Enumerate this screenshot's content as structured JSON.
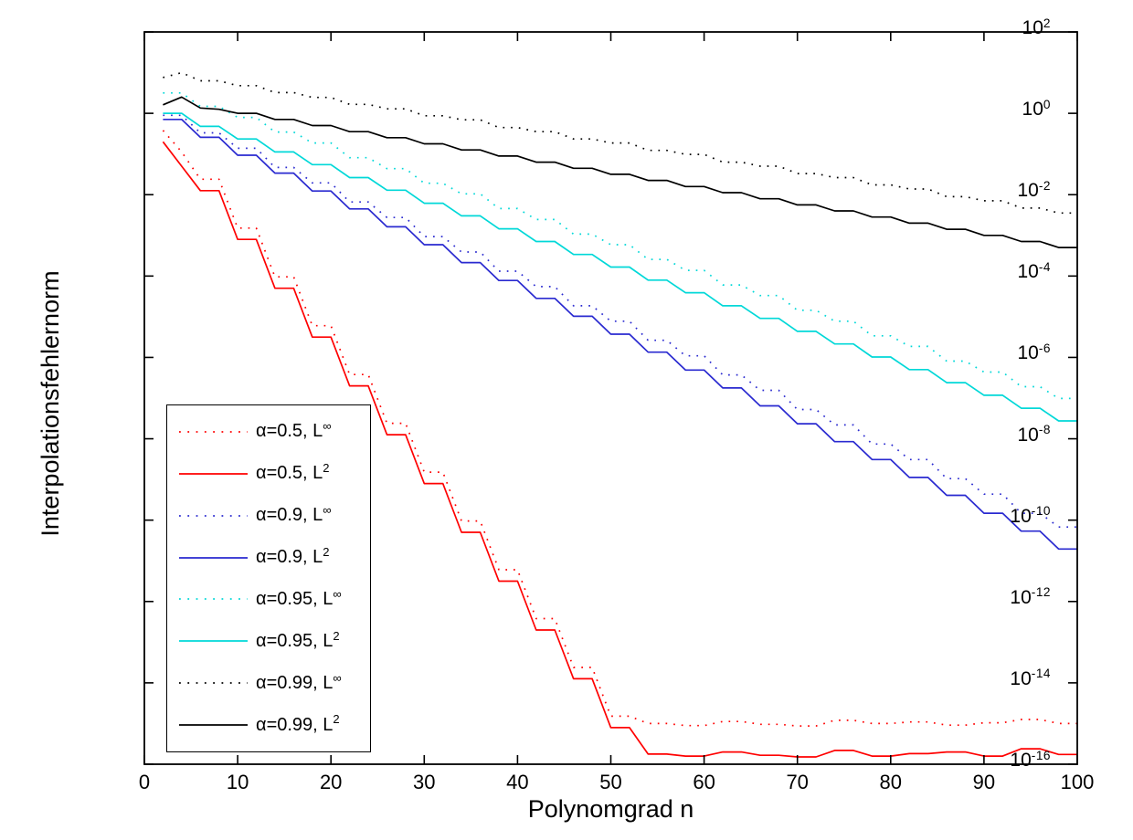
{
  "figure": {
    "background": "#ffffff",
    "axis_color": "#000000"
  },
  "axes": {
    "x": {
      "label": "Polynomgrad n",
      "ticks": [
        "0",
        "10",
        "20",
        "30",
        "40",
        "50",
        "60",
        "70",
        "80",
        "90",
        "100"
      ],
      "min": 0,
      "max": 100
    },
    "y": {
      "label": "Interpolationsfehlernorm",
      "base": "10",
      "tick_exponents": [
        "2",
        "0",
        "-2",
        "-4",
        "-6",
        "-8",
        "-10",
        "-12",
        "-14",
        "-16"
      ],
      "log10_min": -16,
      "log10_max": 2
    }
  },
  "chart_data": {
    "type": "line",
    "title": "",
    "xlabel": "Polynomgrad n",
    "ylabel": "Interpolationsfehlernorm",
    "xlim": [
      0,
      100
    ],
    "ylog10_lim": [
      -16,
      2
    ],
    "x_scale": "linear",
    "y_scale": "log10",
    "grid": false,
    "legend_position": "lower-left",
    "sampling_note": "values sampled at even polynomial degrees n = 2,4,...,100; log10_levels give log10 of the error norm, each level spanning two consecutive sample points (staircase convergence)",
    "x_start": 2,
    "x_step": 2,
    "points_per_level": 2,
    "series": [
      {
        "label_base": "α=0.5, L",
        "label_sup": "∞",
        "alpha": "0.5",
        "norm": "Linf",
        "color": "#ff0000",
        "style": "dotted",
        "log10_levels": [
          -0.42,
          -1.62,
          -2.82,
          -4.02,
          -5.22,
          -6.42,
          -7.62,
          -8.82,
          -10.02,
          -11.22,
          -12.42,
          -13.62,
          -14.82,
          -15.0,
          -15.05,
          -14.95,
          -15.02,
          -15.06,
          -14.92,
          -15.0,
          -14.96,
          -15.04,
          -14.98,
          -14.9,
          -15.0
        ],
        "head_points": [
          [
            4,
            -0.95
          ]
        ]
      },
      {
        "label_base": "α=0.5, L",
        "label_sup": "2",
        "alpha": "0.5",
        "norm": "L2",
        "color": "#ff0000",
        "style": "solid",
        "log10_levels": [
          -0.7,
          -1.9,
          -3.1,
          -4.3,
          -5.5,
          -6.7,
          -7.9,
          -9.1,
          -10.3,
          -11.5,
          -12.7,
          -13.9,
          -15.1,
          -15.75,
          -15.8,
          -15.7,
          -15.78,
          -15.82,
          -15.66,
          -15.8,
          -15.74,
          -15.7,
          -15.8,
          -15.62,
          -15.76
        ],
        "head_points": [
          [
            4,
            -1.3
          ]
        ]
      },
      {
        "label_base": "α=0.9, L",
        "label_sup": "∞",
        "alpha": "0.9",
        "norm": "Linf",
        "color": "#2a2ad0",
        "style": "dotted",
        "log10_levels": [
          -0.05,
          -0.48,
          -0.86,
          -1.33,
          -1.71,
          -2.18,
          -2.56,
          -3.03,
          -3.41,
          -3.88,
          -4.26,
          -4.73,
          -5.11,
          -5.58,
          -5.96,
          -6.43,
          -6.81,
          -7.28,
          -7.66,
          -8.13,
          -8.51,
          -8.98,
          -9.36,
          -9.83,
          -10.17
        ],
        "head_points": []
      },
      {
        "label_base": "α=0.9, L",
        "label_sup": "2",
        "alpha": "0.9",
        "norm": "L2",
        "color": "#2a2ad0",
        "style": "solid",
        "log10_levels": [
          -0.15,
          -0.59,
          -1.03,
          -1.47,
          -1.91,
          -2.35,
          -2.79,
          -3.23,
          -3.67,
          -4.11,
          -4.55,
          -4.99,
          -5.43,
          -5.87,
          -6.31,
          -6.75,
          -7.19,
          -7.63,
          -8.07,
          -8.51,
          -8.95,
          -9.39,
          -9.83,
          -10.27,
          -10.71
        ],
        "head_points": []
      },
      {
        "label_base": "α=0.95, L",
        "label_sup": "∞",
        "alpha": "0.95",
        "norm": "Linf",
        "color": "#00d8d8",
        "style": "dotted",
        "log10_levels": [
          0.5,
          0.17,
          -0.1,
          -0.46,
          -0.73,
          -1.09,
          -1.36,
          -1.72,
          -1.98,
          -2.34,
          -2.61,
          -2.97,
          -3.23,
          -3.59,
          -3.86,
          -4.22,
          -4.48,
          -4.84,
          -5.11,
          -5.47,
          -5.73,
          -6.09,
          -6.36,
          -6.72,
          -7.01
        ],
        "head_points": []
      },
      {
        "label_base": "α=0.95, L",
        "label_sup": "2",
        "alpha": "0.95",
        "norm": "L2",
        "color": "#00d8d8",
        "style": "solid",
        "log10_levels": [
          0.0,
          -0.32,
          -0.63,
          -0.95,
          -1.26,
          -1.58,
          -1.89,
          -2.21,
          -2.52,
          -2.84,
          -3.15,
          -3.47,
          -3.78,
          -4.1,
          -4.41,
          -4.73,
          -5.04,
          -5.36,
          -5.67,
          -5.99,
          -6.3,
          -6.62,
          -6.93,
          -7.25,
          -7.56
        ],
        "head_points": []
      },
      {
        "label_base": "α=0.99, L",
        "label_sup": "∞",
        "alpha": "0.99",
        "norm": "Linf",
        "color": "#000000",
        "style": "dotted",
        "log10_levels": [
          0.95,
          0.8,
          0.68,
          0.51,
          0.39,
          0.22,
          0.11,
          -0.06,
          -0.16,
          -0.35,
          -0.45,
          -0.63,
          -0.73,
          -0.91,
          -1.01,
          -1.2,
          -1.3,
          -1.48,
          -1.58,
          -1.76,
          -1.86,
          -2.05,
          -2.15,
          -2.33,
          -2.45
        ],
        "head_points": [
          [
            2,
            0.88
          ],
          [
            4,
            1.0
          ]
        ]
      },
      {
        "label_base": "α=0.99, L",
        "label_sup": "2",
        "alpha": "0.99",
        "norm": "L2",
        "color": "#000000",
        "style": "solid",
        "log10_levels": [
          0.36,
          0.11,
          0.0,
          -0.15,
          -0.3,
          -0.45,
          -0.6,
          -0.75,
          -0.9,
          -1.05,
          -1.2,
          -1.35,
          -1.5,
          -1.65,
          -1.8,
          -1.95,
          -2.1,
          -2.25,
          -2.4,
          -2.55,
          -2.7,
          -2.85,
          -3.0,
          -3.15,
          -3.3
        ],
        "head_points": [
          [
            2,
            0.21
          ],
          [
            4,
            0.4
          ],
          [
            6,
            0.13
          ],
          [
            8,
            0.1
          ]
        ]
      }
    ]
  }
}
